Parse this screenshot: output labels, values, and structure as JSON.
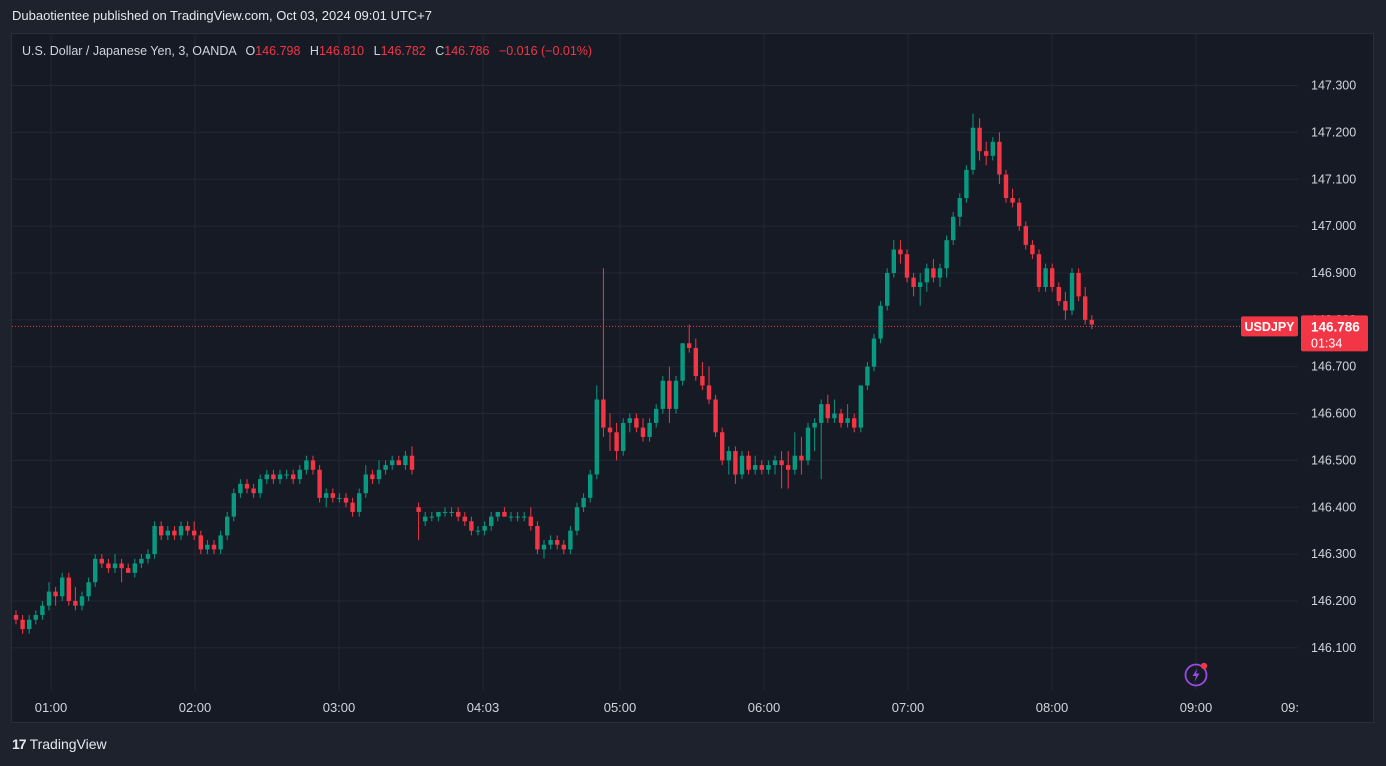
{
  "header": {
    "published": "Dubaotientee published on TradingView.com, Oct 03, 2024 09:01 UTC+7"
  },
  "legend": {
    "symbol": "U.S. Dollar / Japanese Yen, 3, OANDA",
    "o_label": "O",
    "o_value": "146.798",
    "h_label": "H",
    "h_value": "146.810",
    "l_label": "L",
    "l_value": "146.782",
    "c_label": "C",
    "c_value": "146.786",
    "change": "−0.016 (−0.01%)"
  },
  "footer": {
    "brand": "TradingView",
    "logo": "17"
  },
  "price_tag": {
    "symbol": "USDJPY",
    "price": "146.786",
    "countdown": "01:34"
  },
  "colors": {
    "up": "#089981",
    "down": "#f23645",
    "background": "#161a25"
  },
  "icons": {
    "bolt": "bolt-icon"
  },
  "chart_data": {
    "type": "candlestick",
    "y_ticks": [
      "147.300",
      "147.200",
      "147.100",
      "147.000",
      "146.900",
      "146.800",
      "146.700",
      "146.600",
      "146.500",
      "146.400",
      "146.300",
      "146.200",
      "146.100"
    ],
    "ylim": [
      146.01,
      147.41
    ],
    "x_ticks": [
      "01:00",
      "02:00",
      "03:00",
      "04:03",
      "05:00",
      "06:00",
      "07:00",
      "08:00",
      "09:00",
      "09:"
    ],
    "grid": true,
    "last_price": 146.786,
    "candles": [
      [
        146.17,
        146.18,
        146.15,
        146.16
      ],
      [
        146.16,
        146.17,
        146.13,
        146.14
      ],
      [
        146.14,
        146.17,
        146.13,
        146.16
      ],
      [
        146.16,
        146.18,
        146.15,
        146.17
      ],
      [
        146.17,
        146.2,
        146.16,
        146.19
      ],
      [
        146.19,
        146.24,
        146.18,
        146.22
      ],
      [
        146.22,
        146.23,
        146.19,
        146.21
      ],
      [
        146.21,
        146.26,
        146.2,
        146.25
      ],
      [
        146.25,
        146.26,
        146.19,
        146.2
      ],
      [
        146.2,
        146.23,
        146.18,
        146.19
      ],
      [
        146.19,
        146.22,
        146.18,
        146.21
      ],
      [
        146.21,
        146.25,
        146.2,
        146.24
      ],
      [
        146.24,
        146.3,
        146.23,
        146.29
      ],
      [
        146.29,
        146.3,
        146.27,
        146.28
      ],
      [
        146.28,
        146.29,
        146.26,
        146.27
      ],
      [
        146.27,
        146.3,
        146.26,
        146.28
      ],
      [
        146.28,
        146.29,
        146.24,
        146.27
      ],
      [
        146.27,
        146.28,
        146.26,
        146.26
      ],
      [
        146.26,
        146.29,
        146.25,
        146.28
      ],
      [
        146.28,
        146.3,
        146.27,
        146.29
      ],
      [
        146.29,
        146.31,
        146.28,
        146.3
      ],
      [
        146.3,
        146.37,
        146.29,
        146.36
      ],
      [
        146.36,
        146.37,
        146.33,
        146.34
      ],
      [
        146.34,
        146.36,
        146.33,
        146.35
      ],
      [
        146.35,
        146.36,
        146.33,
        146.34
      ],
      [
        146.34,
        146.37,
        146.33,
        146.36
      ],
      [
        146.36,
        146.37,
        146.34,
        146.35
      ],
      [
        146.35,
        146.37,
        146.33,
        146.34
      ],
      [
        146.34,
        146.35,
        146.3,
        146.31
      ],
      [
        146.31,
        146.33,
        146.3,
        146.32
      ],
      [
        146.32,
        146.33,
        146.3,
        146.31
      ],
      [
        146.31,
        146.35,
        146.3,
        146.34
      ],
      [
        146.34,
        146.39,
        146.33,
        146.38
      ],
      [
        146.38,
        146.44,
        146.37,
        146.43
      ],
      [
        146.43,
        146.46,
        146.42,
        146.45
      ],
      [
        146.45,
        146.46,
        146.43,
        146.44
      ],
      [
        146.44,
        146.45,
        146.42,
        146.43
      ],
      [
        146.43,
        146.47,
        146.42,
        146.46
      ],
      [
        146.46,
        146.48,
        146.45,
        146.47
      ],
      [
        146.47,
        146.48,
        146.45,
        146.46
      ],
      [
        146.46,
        146.48,
        146.45,
        146.47
      ],
      [
        146.47,
        146.48,
        146.46,
        146.47
      ],
      [
        146.47,
        146.48,
        146.45,
        146.46
      ],
      [
        146.46,
        146.49,
        146.45,
        146.48
      ],
      [
        146.48,
        146.51,
        146.47,
        146.5
      ],
      [
        146.5,
        146.51,
        146.47,
        146.48
      ],
      [
        146.48,
        146.49,
        146.41,
        146.42
      ],
      [
        146.42,
        146.44,
        146.4,
        146.43
      ],
      [
        146.43,
        146.44,
        146.41,
        146.42
      ],
      [
        146.42,
        146.43,
        146.41,
        146.42
      ],
      [
        146.42,
        146.43,
        146.4,
        146.41
      ],
      [
        146.41,
        146.42,
        146.38,
        146.39
      ],
      [
        146.39,
        146.44,
        146.38,
        146.43
      ],
      [
        146.43,
        146.49,
        146.42,
        146.47
      ],
      [
        146.47,
        146.48,
        146.45,
        146.46
      ],
      [
        146.46,
        146.5,
        146.45,
        146.48
      ],
      [
        146.48,
        146.5,
        146.47,
        146.49
      ],
      [
        146.49,
        146.51,
        146.48,
        146.5
      ],
      [
        146.5,
        146.51,
        146.49,
        146.49
      ],
      [
        146.49,
        146.52,
        146.48,
        146.51
      ],
      [
        146.51,
        146.53,
        146.47,
        146.48
      ],
      [
        146.4,
        146.41,
        146.33,
        146.39
      ],
      [
        146.37,
        146.39,
        146.36,
        146.38
      ],
      [
        146.38,
        146.39,
        146.37,
        146.38
      ],
      [
        146.38,
        146.39,
        146.37,
        146.39
      ],
      [
        146.39,
        146.4,
        146.38,
        146.39
      ],
      [
        146.39,
        146.4,
        146.38,
        146.39
      ],
      [
        146.39,
        146.4,
        146.37,
        146.38
      ],
      [
        146.38,
        146.39,
        146.36,
        146.37
      ],
      [
        146.37,
        146.38,
        146.34,
        146.35
      ],
      [
        146.35,
        146.36,
        146.34,
        146.35
      ],
      [
        146.35,
        146.37,
        146.34,
        146.36
      ],
      [
        146.36,
        146.39,
        146.35,
        146.38
      ],
      [
        146.38,
        146.39,
        146.37,
        146.39
      ],
      [
        146.39,
        146.4,
        146.38,
        146.38
      ],
      [
        146.38,
        146.39,
        146.37,
        146.38
      ],
      [
        146.38,
        146.39,
        146.37,
        146.38
      ],
      [
        146.38,
        146.39,
        146.37,
        146.38
      ],
      [
        146.38,
        146.4,
        146.35,
        146.36
      ],
      [
        146.36,
        146.37,
        146.3,
        146.31
      ],
      [
        146.31,
        146.33,
        146.29,
        146.32
      ],
      [
        146.32,
        146.34,
        146.31,
        146.33
      ],
      [
        146.33,
        146.34,
        146.31,
        146.32
      ],
      [
        146.32,
        146.33,
        146.3,
        146.31
      ],
      [
        146.31,
        146.36,
        146.3,
        146.35
      ],
      [
        146.35,
        146.41,
        146.34,
        146.4
      ],
      [
        146.4,
        146.43,
        146.39,
        146.42
      ],
      [
        146.42,
        146.48,
        146.41,
        146.47
      ],
      [
        146.47,
        146.66,
        146.46,
        146.63
      ],
      [
        146.63,
        146.91,
        146.55,
        146.57
      ],
      [
        146.57,
        146.6,
        146.52,
        146.56
      ],
      [
        146.56,
        146.58,
        146.5,
        146.52
      ],
      [
        146.52,
        146.59,
        146.51,
        146.58
      ],
      [
        146.58,
        146.6,
        146.56,
        146.59
      ],
      [
        146.59,
        146.6,
        146.56,
        146.57
      ],
      [
        146.57,
        146.59,
        146.54,
        146.55
      ],
      [
        146.55,
        146.59,
        146.54,
        146.58
      ],
      [
        146.58,
        146.62,
        146.57,
        146.61
      ],
      [
        146.61,
        146.68,
        146.6,
        146.67
      ],
      [
        146.67,
        146.7,
        146.58,
        146.61
      ],
      [
        146.61,
        146.68,
        146.6,
        146.67
      ],
      [
        146.67,
        146.75,
        146.66,
        146.75
      ],
      [
        146.75,
        146.79,
        146.73,
        146.74
      ],
      [
        146.74,
        146.76,
        146.67,
        146.68
      ],
      [
        146.68,
        146.71,
        146.65,
        146.66
      ],
      [
        146.66,
        146.7,
        146.62,
        146.63
      ],
      [
        146.63,
        146.64,
        146.55,
        146.56
      ],
      [
        146.56,
        146.57,
        146.49,
        146.5
      ],
      [
        146.5,
        146.53,
        146.47,
        146.52
      ],
      [
        146.52,
        146.53,
        146.45,
        146.47
      ],
      [
        146.47,
        146.52,
        146.46,
        146.51
      ],
      [
        146.51,
        146.52,
        146.47,
        146.48
      ],
      [
        146.48,
        146.51,
        146.47,
        146.49
      ],
      [
        146.49,
        146.5,
        146.47,
        146.48
      ],
      [
        146.48,
        146.5,
        146.47,
        146.49
      ],
      [
        146.49,
        146.51,
        146.47,
        146.5
      ],
      [
        146.5,
        146.52,
        146.44,
        146.49
      ],
      [
        146.49,
        146.52,
        146.44,
        146.48
      ],
      [
        146.48,
        146.56,
        146.47,
        146.51
      ],
      [
        146.51,
        146.55,
        146.47,
        146.5
      ],
      [
        146.5,
        146.58,
        146.49,
        146.57
      ],
      [
        146.57,
        146.59,
        146.52,
        146.58
      ],
      [
        146.58,
        146.63,
        146.46,
        146.62
      ],
      [
        146.62,
        146.64,
        146.58,
        146.59
      ],
      [
        146.59,
        146.63,
        146.58,
        146.6
      ],
      [
        146.6,
        146.61,
        146.57,
        146.58
      ],
      [
        146.58,
        146.62,
        146.57,
        146.59
      ],
      [
        146.59,
        146.6,
        146.56,
        146.57
      ],
      [
        146.57,
        146.66,
        146.56,
        146.66
      ],
      [
        146.66,
        146.71,
        146.65,
        146.7
      ],
      [
        146.7,
        146.77,
        146.69,
        146.76
      ],
      [
        146.76,
        146.84,
        146.75,
        146.83
      ],
      [
        146.83,
        146.91,
        146.82,
        146.9
      ],
      [
        146.9,
        146.97,
        146.89,
        146.95
      ],
      [
        146.95,
        146.97,
        146.92,
        146.94
      ],
      [
        146.94,
        146.95,
        146.88,
        146.89
      ],
      [
        146.89,
        146.9,
        146.85,
        146.87
      ],
      [
        146.87,
        146.9,
        146.83,
        146.88
      ],
      [
        146.88,
        146.92,
        146.86,
        146.91
      ],
      [
        146.91,
        146.93,
        146.88,
        146.89
      ],
      [
        146.89,
        146.92,
        146.87,
        146.91
      ],
      [
        146.91,
        146.98,
        146.89,
        146.97
      ],
      [
        146.97,
        147.03,
        146.96,
        147.02
      ],
      [
        147.02,
        147.07,
        147.0,
        147.06
      ],
      [
        147.06,
        147.13,
        147.05,
        147.12
      ],
      [
        147.12,
        147.24,
        147.11,
        147.21
      ],
      [
        147.21,
        147.23,
        147.14,
        147.16
      ],
      [
        147.16,
        147.18,
        147.13,
        147.15
      ],
      [
        147.15,
        147.19,
        147.14,
        147.18
      ],
      [
        147.18,
        147.2,
        147.09,
        147.11
      ],
      [
        147.11,
        147.12,
        147.05,
        147.06
      ],
      [
        147.06,
        147.08,
        147.04,
        147.05
      ],
      [
        147.05,
        147.06,
        146.99,
        147.0
      ],
      [
        147.0,
        147.01,
        146.95,
        146.96
      ],
      [
        146.96,
        146.97,
        146.93,
        146.94
      ],
      [
        146.94,
        146.95,
        146.86,
        146.87
      ],
      [
        146.87,
        146.92,
        146.86,
        146.91
      ],
      [
        146.91,
        146.92,
        146.86,
        146.87
      ],
      [
        146.87,
        146.88,
        146.83,
        146.84
      ],
      [
        146.84,
        146.86,
        146.8,
        146.82
      ],
      [
        146.82,
        146.91,
        146.81,
        146.9
      ],
      [
        146.9,
        146.91,
        146.84,
        146.85
      ],
      [
        146.85,
        146.87,
        146.79,
        146.8
      ],
      [
        146.8,
        146.81,
        146.78,
        146.79
      ]
    ]
  }
}
